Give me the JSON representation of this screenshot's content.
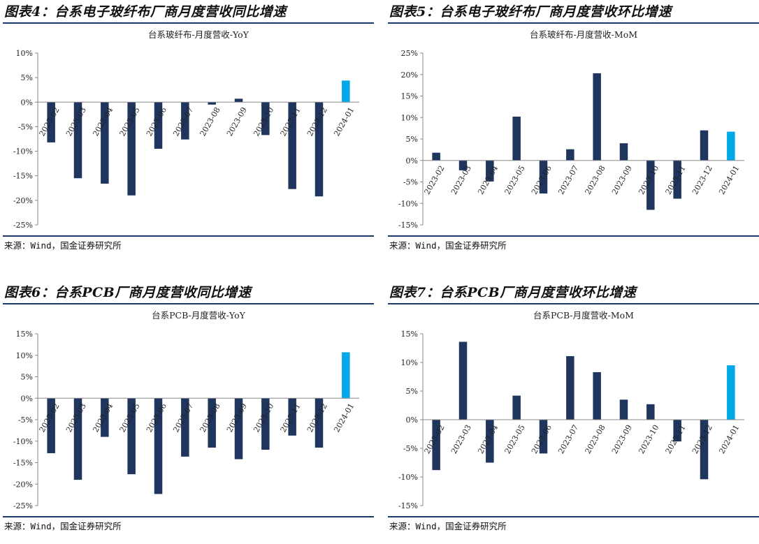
{
  "source_label": "来源：Wind，国金证券研究所",
  "colors": {
    "bar": "#1f355e",
    "highlight": "#00a8e8",
    "rule": "#1b3a6b"
  },
  "panels": [
    {
      "title": "图表4：台系电子玻纤布厂商月度营收同比增速",
      "chart_data": {
        "type": "bar",
        "title": "台系玻纤布-月度营收-YoY",
        "categories": [
          "2023-02",
          "2023-03",
          "2023-04",
          "2023-05",
          "2023-06",
          "2023-07",
          "2023-08",
          "2023-09",
          "2023-10",
          "2023-11",
          "2023-12",
          "2024-01"
        ],
        "values": [
          -8.2,
          -15.5,
          -16.6,
          -19.0,
          -9.5,
          -7.6,
          -0.5,
          0.7,
          -6.7,
          -17.7,
          -19.2,
          4.4
        ],
        "ylim": [
          -25,
          10
        ],
        "yticks": [
          10,
          5,
          0,
          -5,
          -10,
          -15,
          -20,
          -25
        ],
        "xlabel": "",
        "ylabel": ""
      }
    },
    {
      "title": "图表5：台系电子玻纤布厂商月度营收环比增速",
      "chart_data": {
        "type": "bar",
        "title": "台系玻纤布-月度营收-MoM",
        "categories": [
          "2023-02",
          "2023-03",
          "2023-04",
          "2023-05",
          "2023-06",
          "2023-07",
          "2023-08",
          "2023-09",
          "2023-10",
          "2023-11",
          "2023-12",
          "2024-01"
        ],
        "values": [
          1.8,
          -2.3,
          -4.9,
          10.2,
          -7.7,
          2.6,
          20.3,
          4.0,
          -11.5,
          -8.9,
          7.0,
          6.7
        ],
        "ylim": [
          -15,
          25
        ],
        "yticks": [
          25,
          20,
          15,
          10,
          5,
          0,
          -5,
          -10,
          -15
        ],
        "xlabel": "",
        "ylabel": ""
      }
    },
    {
      "title": "图表6：台系PCB厂商月度营收同比增速",
      "chart_data": {
        "type": "bar",
        "title": "台系PCB-月度营收-YoY",
        "categories": [
          "2023-02",
          "2023-03",
          "2023-04",
          "2023-05",
          "2023-06",
          "2023-07",
          "2023-08",
          "2023-09",
          "2023-10",
          "2023-11",
          "2023-12",
          "2024-01"
        ],
        "values": [
          -12.8,
          -19.0,
          -9.0,
          -17.7,
          -22.3,
          -13.6,
          -11.5,
          -14.2,
          -12.0,
          -8.7,
          -11.5,
          10.7
        ],
        "ylim": [
          -25,
          15
        ],
        "yticks": [
          15,
          10,
          5,
          0,
          -5,
          -10,
          -15,
          -20,
          -25
        ],
        "xlabel": "",
        "ylabel": ""
      }
    },
    {
      "title": "图表7：台系PCB厂商月度营收环比增速",
      "chart_data": {
        "type": "bar",
        "title": "台系PCB-月度营收-MoM",
        "categories": [
          "2023-02",
          "2023-03",
          "2023-04",
          "2023-05",
          "2023-06",
          "2023-07",
          "2023-08",
          "2023-09",
          "2023-10",
          "2023-11",
          "2023-12",
          "2024-01"
        ],
        "values": [
          -8.8,
          13.6,
          -7.5,
          4.2,
          -5.9,
          11.1,
          8.3,
          3.5,
          2.7,
          -3.8,
          -10.4,
          9.5
        ],
        "ylim": [
          -15,
          15
        ],
        "yticks": [
          15,
          10,
          5,
          0,
          -5,
          -10,
          -15
        ],
        "xlabel": "",
        "ylabel": ""
      }
    }
  ]
}
